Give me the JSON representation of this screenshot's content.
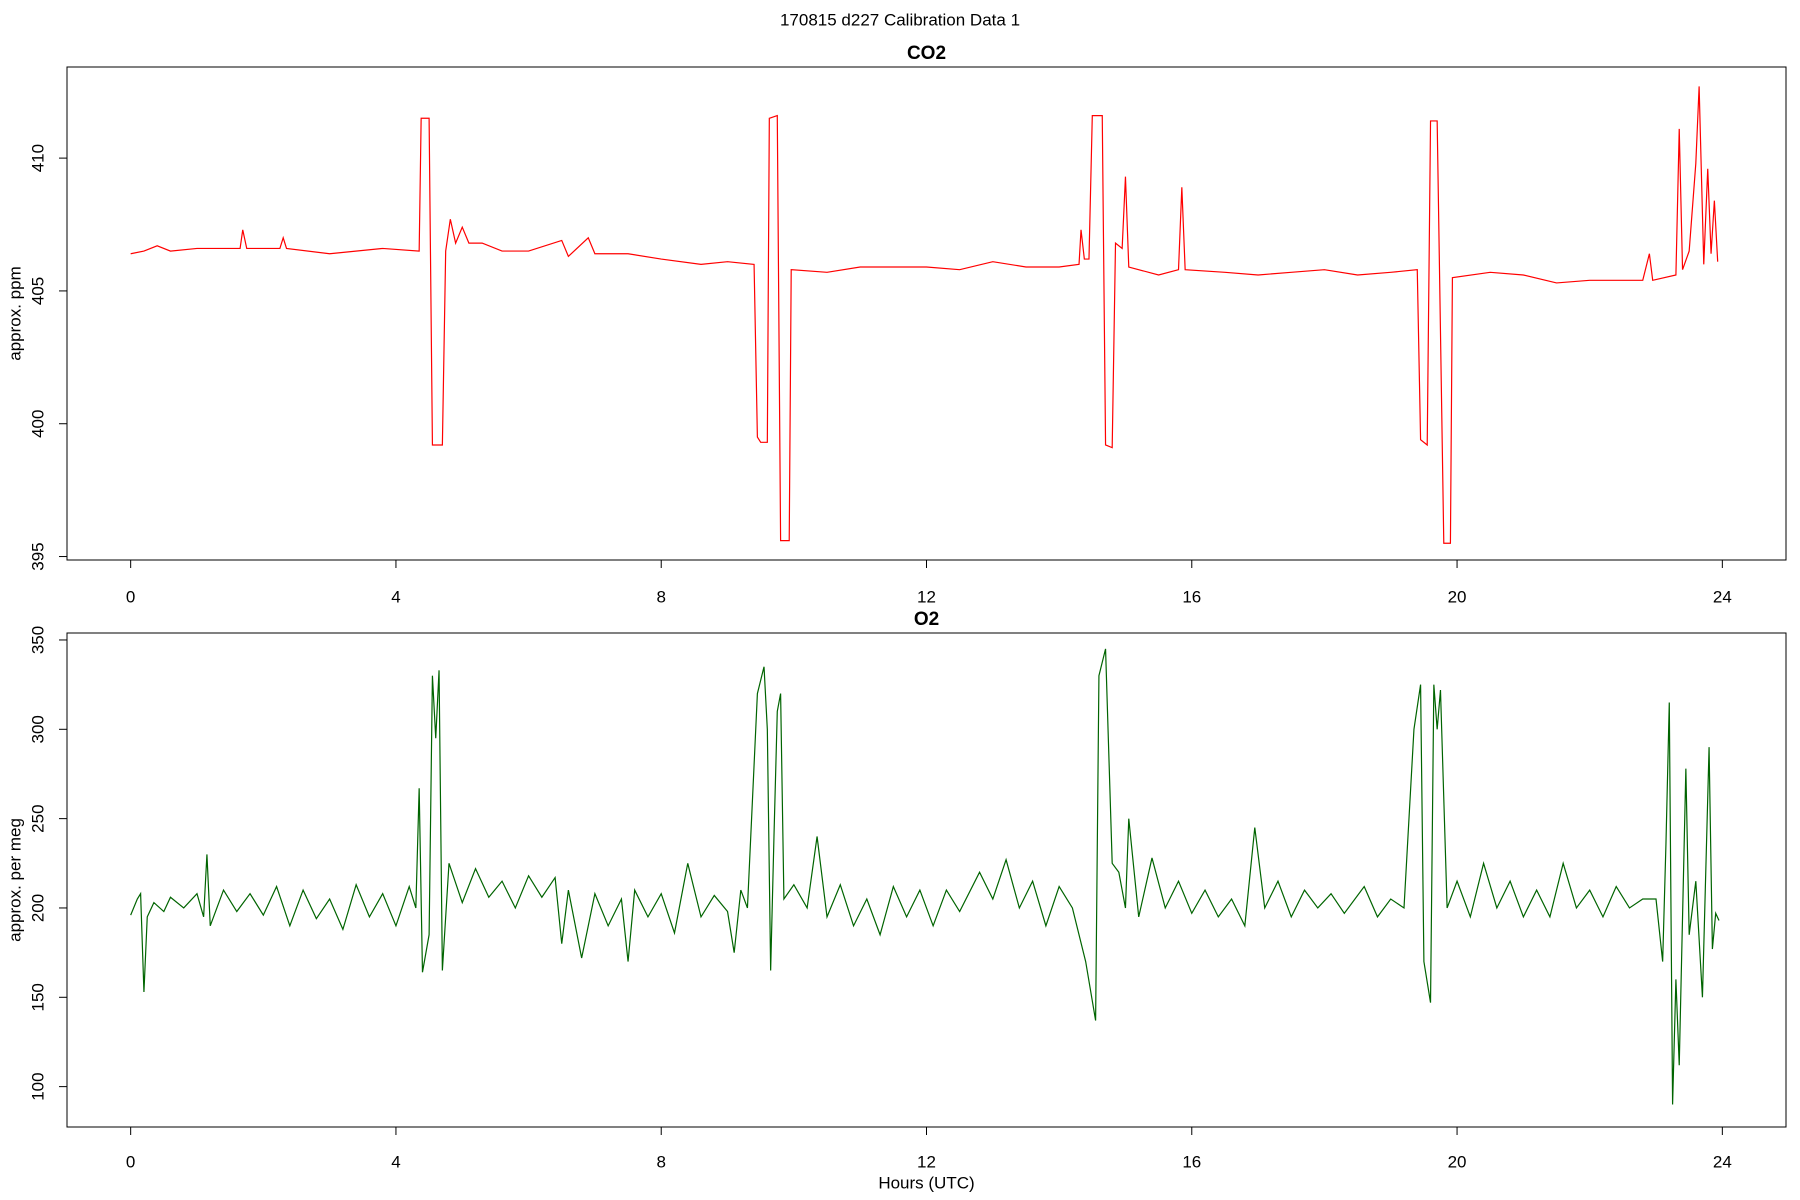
{
  "title": "170815   d227   Calibration Data 1",
  "chart_data": [
    {
      "type": "line",
      "title": "CO2",
      "y_label": "approx. ppm",
      "xlim": [
        -0.96,
        24.96
      ],
      "xticks": [
        0,
        4,
        8,
        12,
        16,
        20,
        24
      ],
      "ylim": [
        394.87,
        413.43
      ],
      "yticks": [
        395,
        400,
        405,
        410
      ],
      "x": [
        0.0,
        0.2,
        0.4,
        0.6,
        1.0,
        1.5,
        1.65,
        1.69,
        1.75,
        2.25,
        2.3,
        2.35,
        3.0,
        3.8,
        4.35,
        4.38,
        4.5,
        4.55,
        4.7,
        4.75,
        4.82,
        4.9,
        5.0,
        5.1,
        5.3,
        5.6,
        6.0,
        6.5,
        6.6,
        6.9,
        7.0,
        7.5,
        8.0,
        8.6,
        9.0,
        9.4,
        9.45,
        9.5,
        9.6,
        9.63,
        9.75,
        9.8,
        9.93,
        9.96,
        10.5,
        11.0,
        12.0,
        12.5,
        13.0,
        13.5,
        14.0,
        14.3,
        14.33,
        14.38,
        14.45,
        14.5,
        14.65,
        14.7,
        14.8,
        14.85,
        14.95,
        15.0,
        15.05,
        15.5,
        15.8,
        15.85,
        15.9,
        16.5,
        17.0,
        17.5,
        18.0,
        18.5,
        19.0,
        19.4,
        19.45,
        19.55,
        19.6,
        19.7,
        19.8,
        19.9,
        19.93,
        20.5,
        21.0,
        21.5,
        22.0,
        22.5,
        22.8,
        22.9,
        22.95,
        23.3,
        23.35,
        23.4,
        23.5,
        23.6,
        23.65,
        23.72,
        23.78,
        23.83,
        23.88,
        23.93
      ],
      "series": [
        {
          "name": "CO2",
          "color": "#ff0000",
          "values": [
            406.4,
            406.5,
            406.7,
            406.5,
            406.6,
            406.6,
            406.6,
            407.3,
            406.6,
            406.6,
            407.0,
            406.6,
            406.4,
            406.6,
            406.5,
            411.5,
            411.5,
            399.2,
            399.2,
            406.5,
            407.7,
            406.8,
            407.4,
            406.8,
            406.8,
            406.5,
            406.5,
            406.9,
            406.3,
            407.0,
            406.4,
            406.4,
            406.2,
            406.0,
            406.1,
            406.0,
            399.5,
            399.3,
            399.3,
            411.5,
            411.6,
            395.6,
            395.6,
            405.8,
            405.7,
            405.9,
            405.9,
            405.8,
            406.1,
            405.9,
            405.9,
            406.0,
            407.3,
            406.2,
            406.2,
            411.6,
            411.6,
            399.2,
            399.1,
            406.8,
            406.6,
            409.3,
            405.9,
            405.6,
            405.8,
            408.9,
            405.8,
            405.7,
            405.6,
            405.7,
            405.8,
            405.6,
            405.7,
            405.8,
            399.4,
            399.2,
            411.4,
            411.4,
            395.5,
            395.5,
            405.5,
            405.7,
            405.6,
            405.3,
            405.4,
            405.4,
            405.4,
            406.4,
            405.4,
            405.6,
            411.1,
            405.8,
            406.5,
            409.8,
            412.7,
            406.0,
            409.6,
            406.4,
            408.4,
            406.1
          ]
        }
      ]
    },
    {
      "type": "line",
      "title": "O2",
      "y_label": "approx. per meg",
      "x_label": "Hours (UTC)",
      "xlim": [
        -0.96,
        24.96
      ],
      "xticks": [
        0,
        4,
        8,
        12,
        16,
        20,
        24
      ],
      "ylim": [
        77.4,
        353.9
      ],
      "yticks": [
        100,
        150,
        200,
        250,
        300,
        350
      ],
      "x": [
        0.0,
        0.1,
        0.15,
        0.2,
        0.25,
        0.35,
        0.5,
        0.6,
        0.8,
        1.0,
        1.1,
        1.15,
        1.2,
        1.4,
        1.6,
        1.8,
        2.0,
        2.2,
        2.4,
        2.6,
        2.8,
        3.0,
        3.2,
        3.4,
        3.6,
        3.8,
        4.0,
        4.2,
        4.3,
        4.35,
        4.4,
        4.5,
        4.55,
        4.6,
        4.65,
        4.7,
        4.8,
        5.0,
        5.2,
        5.4,
        5.6,
        5.8,
        6.0,
        6.2,
        6.4,
        6.5,
        6.6,
        6.8,
        7.0,
        7.2,
        7.4,
        7.5,
        7.6,
        7.8,
        8.0,
        8.2,
        8.4,
        8.6,
        8.8,
        9.0,
        9.1,
        9.2,
        9.3,
        9.45,
        9.55,
        9.6,
        9.65,
        9.7,
        9.75,
        9.8,
        9.85,
        10.0,
        10.2,
        10.35,
        10.5,
        10.7,
        10.9,
        11.1,
        11.3,
        11.5,
        11.7,
        11.9,
        12.1,
        12.3,
        12.5,
        12.8,
        13.0,
        13.2,
        13.4,
        13.6,
        13.8,
        14.0,
        14.2,
        14.4,
        14.55,
        14.6,
        14.7,
        14.8,
        14.9,
        15.0,
        15.05,
        15.2,
        15.4,
        15.6,
        15.8,
        16.0,
        16.2,
        16.4,
        16.6,
        16.8,
        16.95,
        17.1,
        17.3,
        17.5,
        17.7,
        17.9,
        18.1,
        18.3,
        18.6,
        18.8,
        19.0,
        19.2,
        19.35,
        19.45,
        19.5,
        19.6,
        19.65,
        19.7,
        19.75,
        19.85,
        20.0,
        20.2,
        20.4,
        20.6,
        20.8,
        21.0,
        21.2,
        21.4,
        21.6,
        21.8,
        22.0,
        22.2,
        22.4,
        22.6,
        22.8,
        23.0,
        23.1,
        23.15,
        23.2,
        23.25,
        23.3,
        23.35,
        23.45,
        23.5,
        23.6,
        23.7,
        23.8,
        23.85,
        23.9,
        23.95
      ],
      "series": [
        {
          "name": "O2",
          "color": "#006400",
          "values": [
            196,
            205,
            208,
            153,
            195,
            203,
            198,
            206,
            200,
            208,
            195,
            230,
            190,
            210,
            198,
            208,
            196,
            212,
            190,
            210,
            194,
            205,
            188,
            213,
            195,
            208,
            190,
            212,
            200,
            267,
            164,
            185,
            330,
            295,
            333,
            165,
            225,
            203,
            222,
            206,
            215,
            200,
            218,
            206,
            217,
            180,
            210,
            172,
            208,
            190,
            205,
            170,
            210,
            195,
            208,
            186,
            225,
            195,
            207,
            198,
            175,
            210,
            200,
            320,
            335,
            300,
            165,
            240,
            310,
            320,
            205,
            213,
            200,
            240,
            195,
            213,
            190,
            205,
            185,
            212,
            195,
            210,
            190,
            210,
            198,
            220,
            205,
            227,
            200,
            215,
            190,
            212,
            200,
            170,
            137,
            330,
            345,
            225,
            220,
            200,
            250,
            195,
            228,
            200,
            215,
            197,
            210,
            195,
            205,
            190,
            245,
            200,
            215,
            195,
            210,
            200,
            208,
            197,
            212,
            195,
            205,
            200,
            300,
            325,
            170,
            147,
            325,
            300,
            322,
            200,
            215,
            195,
            225,
            200,
            215,
            195,
            210,
            195,
            225,
            200,
            210,
            195,
            212,
            200,
            205,
            205,
            170,
            236,
            315,
            90,
            160,
            112,
            278,
            185,
            215,
            150,
            290,
            177,
            197,
            193
          ]
        }
      ]
    }
  ]
}
